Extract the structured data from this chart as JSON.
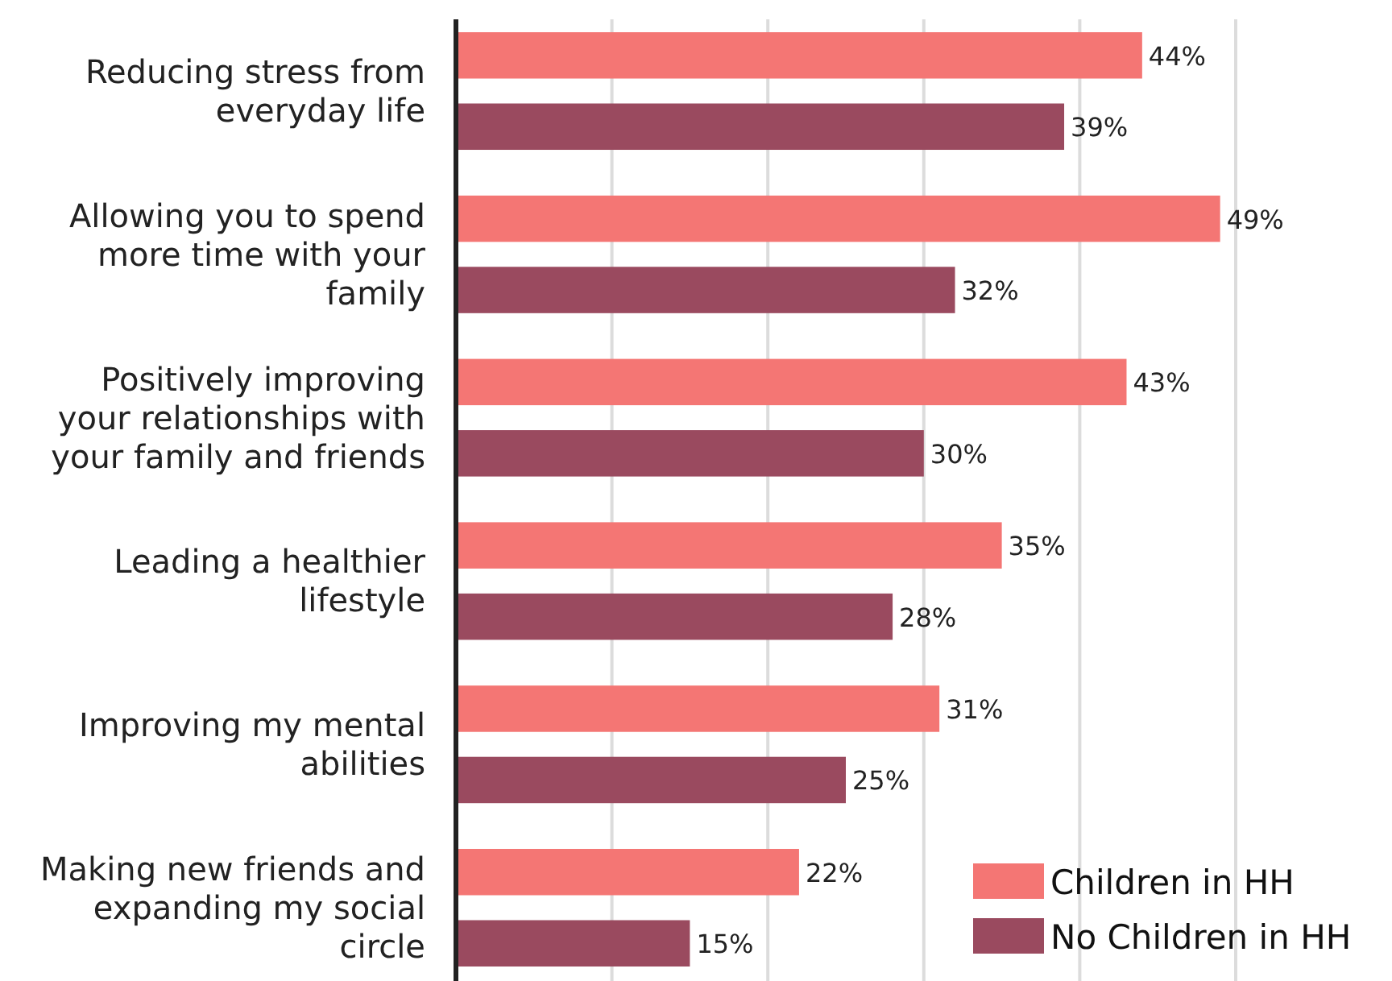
{
  "chart_data": {
    "type": "bar",
    "orientation": "horizontal",
    "categories": [
      "Reducing stress from everyday life",
      "Allowing you to spend more time with your family",
      "Positively improving your relationships with your family and friends",
      "Leading a healthier lifestyle",
      "Improving my mental abilities",
      "Making new friends and expanding my social circle"
    ],
    "series": [
      {
        "name": "Children in HH",
        "color": "#f47674",
        "values": [
          44,
          49,
          43,
          35,
          31,
          22
        ],
        "value_labels": [
          "44%",
          "49%",
          "43%",
          "35%",
          "31%",
          "22%"
        ]
      },
      {
        "name": "No Children in HH",
        "color": "#9a4a5f",
        "values": [
          39,
          32,
          30,
          28,
          25,
          15
        ],
        "value_labels": [
          "39%",
          "32%",
          "30%",
          "28%",
          "25%",
          "15%"
        ]
      }
    ],
    "xticks": [
      {
        "value": 10,
        "label": null
      },
      {
        "value": 20,
        "label": null
      },
      {
        "value": 30,
        "label": null
      },
      {
        "value": 40,
        "label": null
      },
      {
        "value": 50,
        "label": null
      }
    ],
    "grid": "x",
    "legend": "bottom right"
  }
}
